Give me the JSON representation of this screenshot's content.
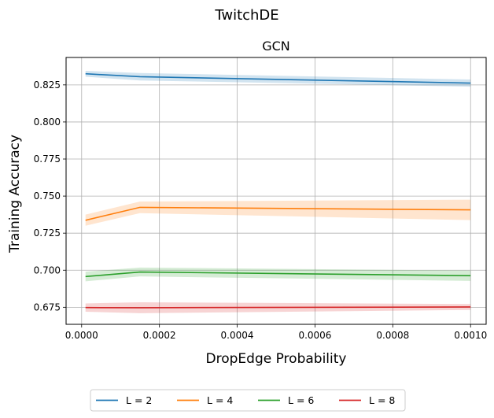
{
  "chart_data": {
    "type": "line",
    "suptitle": "TwitchDE",
    "title": "GCN",
    "xlabel": "DropEdge Probability",
    "ylabel": "Training Accuracy",
    "xlim": [
      -4e-05,
      0.00104
    ],
    "ylim": [
      0.6635,
      0.8435
    ],
    "x_ticks": [
      0.0,
      0.0002,
      0.0004,
      0.0006,
      0.0008,
      0.001
    ],
    "x_tick_labels": [
      "0.0000",
      "0.0002",
      "0.0004",
      "0.0006",
      "0.0008",
      "0.0010"
    ],
    "y_ticks": [
      0.675,
      0.7,
      0.725,
      0.75,
      0.775,
      0.8,
      0.825
    ],
    "y_tick_labels": [
      "0.675",
      "0.700",
      "0.725",
      "0.750",
      "0.775",
      "0.800",
      "0.825"
    ],
    "grid": true,
    "legend_position": "bottom-center",
    "x": [
      1e-05,
      0.00015,
      0.001
    ],
    "series": [
      {
        "name": "L = 2",
        "color": "#1f77b4",
        "values": [
          0.8325,
          0.8305,
          0.8262
        ],
        "lower": [
          0.8305,
          0.828,
          0.8238
        ],
        "upper": [
          0.8345,
          0.833,
          0.8286
        ]
      },
      {
        "name": "L = 4",
        "color": "#ff7f0e",
        "values": [
          0.7337,
          0.7424,
          0.7407
        ],
        "lower": [
          0.73,
          0.7385,
          0.7338
        ],
        "upper": [
          0.7375,
          0.7463,
          0.7476
        ]
      },
      {
        "name": "L = 6",
        "color": "#2ca02c",
        "values": [
          0.6957,
          0.6988,
          0.6963
        ],
        "lower": [
          0.6925,
          0.6958,
          0.6928
        ],
        "upper": [
          0.699,
          0.7018,
          0.6998
        ]
      },
      {
        "name": "L = 8",
        "color": "#d62728",
        "values": [
          0.6748,
          0.6747,
          0.6752
        ],
        "lower": [
          0.672,
          0.671,
          0.6732
        ],
        "upper": [
          0.6776,
          0.6784,
          0.6772
        ]
      }
    ]
  }
}
